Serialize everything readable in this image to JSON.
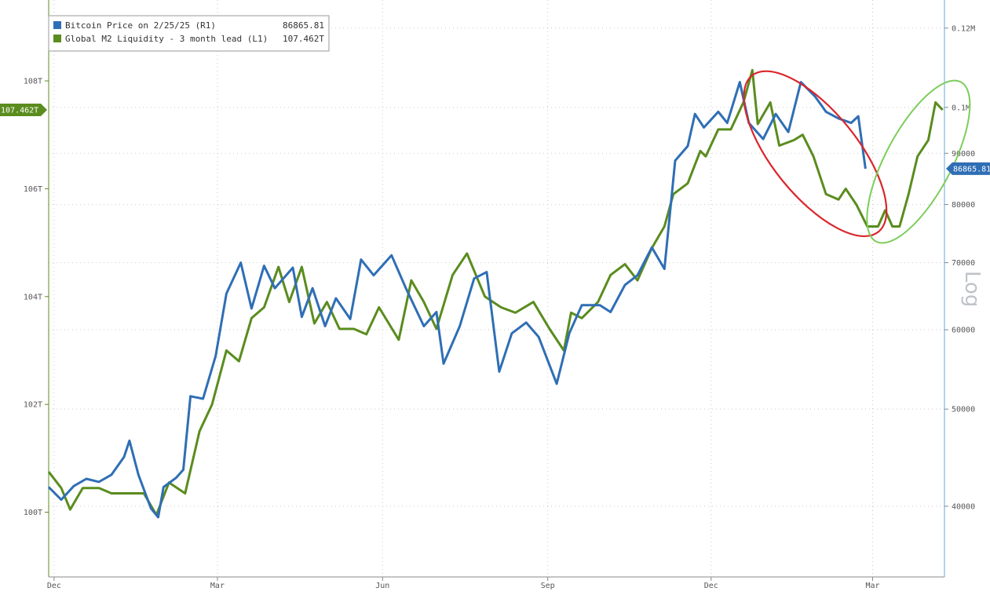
{
  "chart_data": {
    "type": "line",
    "legend_position": "top-left",
    "grid": true,
    "x_tick_labels": [
      "Dec",
      "Mar",
      "Jun",
      "Sep",
      "Dec",
      "Mar"
    ],
    "x_tick_dates": [
      "2023-12-01",
      "2024-03-01",
      "2024-06-01",
      "2024-09-01",
      "2024-12-01",
      "2025-03-01"
    ],
    "x_range": [
      "2023-11-28",
      "2025-04-10"
    ],
    "left_axis": {
      "scale": "linear",
      "range": [
        98.8,
        109.5
      ],
      "unit_suffix": "T",
      "tick_values": [
        100,
        102,
        104,
        106,
        108
      ],
      "tick_labels": [
        "100T",
        "102T",
        "104T",
        "106T",
        "108T"
      ]
    },
    "right_axis": {
      "scale": "log",
      "label": "Log",
      "range": [
        34000,
        128000
      ],
      "tick_values": [
        40000,
        50000,
        60000,
        70000,
        80000,
        90000,
        100000,
        120000
      ],
      "tick_labels": [
        "40000",
        "50000",
        "60000",
        "70000",
        "80000",
        "90000",
        "0.1M",
        "0.12M"
      ]
    },
    "series": [
      {
        "name": "Bitcoin Price on 2/25/25 (R1)",
        "axis": "right",
        "color": "#2f6eb5",
        "last_value_label": "86865.81",
        "tag_label": "86865.81",
        "points": [
          [
            "2023-11-28",
            41800
          ],
          [
            "2023-12-05",
            40600
          ],
          [
            "2023-12-12",
            41900
          ],
          [
            "2023-12-19",
            42600
          ],
          [
            "2023-12-26",
            42300
          ],
          [
            "2024-01-02",
            43000
          ],
          [
            "2024-01-09",
            44800
          ],
          [
            "2024-01-12",
            46500
          ],
          [
            "2024-01-17",
            43000
          ],
          [
            "2024-01-24",
            39800
          ],
          [
            "2024-01-28",
            39000
          ],
          [
            "2024-01-31",
            41800
          ],
          [
            "2024-02-07",
            42700
          ],
          [
            "2024-02-11",
            43500
          ],
          [
            "2024-02-15",
            51500
          ],
          [
            "2024-02-22",
            51200
          ],
          [
            "2024-02-29",
            56500
          ],
          [
            "2024-03-06",
            65200
          ],
          [
            "2024-03-14",
            70000
          ],
          [
            "2024-03-20",
            63000
          ],
          [
            "2024-03-27",
            69500
          ],
          [
            "2024-04-02",
            66000
          ],
          [
            "2024-04-12",
            69200
          ],
          [
            "2024-04-17",
            61800
          ],
          [
            "2024-04-23",
            66000
          ],
          [
            "2024-04-30",
            60500
          ],
          [
            "2024-05-06",
            64500
          ],
          [
            "2024-05-14",
            61500
          ],
          [
            "2024-05-20",
            70500
          ],
          [
            "2024-05-27",
            68000
          ],
          [
            "2024-06-06",
            71200
          ],
          [
            "2024-06-14",
            66000
          ],
          [
            "2024-06-24",
            60500
          ],
          [
            "2024-07-01",
            62500
          ],
          [
            "2024-07-05",
            55500
          ],
          [
            "2024-07-14",
            60500
          ],
          [
            "2024-07-22",
            67500
          ],
          [
            "2024-07-29",
            68500
          ],
          [
            "2024-08-05",
            54500
          ],
          [
            "2024-08-12",
            59500
          ],
          [
            "2024-08-20",
            61000
          ],
          [
            "2024-08-27",
            59000
          ],
          [
            "2024-09-06",
            53000
          ],
          [
            "2024-09-13",
            59500
          ],
          [
            "2024-09-20",
            63500
          ],
          [
            "2024-09-30",
            63500
          ],
          [
            "2024-10-06",
            62500
          ],
          [
            "2024-10-14",
            66500
          ],
          [
            "2024-10-21",
            68000
          ],
          [
            "2024-10-29",
            72500
          ],
          [
            "2024-11-05",
            69000
          ],
          [
            "2024-11-11",
            88500
          ],
          [
            "2024-11-18",
            91500
          ],
          [
            "2024-11-22",
            98500
          ],
          [
            "2024-11-27",
            95500
          ],
          [
            "2024-12-05",
            99000
          ],
          [
            "2024-12-10",
            96500
          ],
          [
            "2024-12-17",
            106000
          ],
          [
            "2024-12-22",
            96500
          ],
          [
            "2024-12-30",
            93000
          ],
          [
            "2025-01-06",
            98500
          ],
          [
            "2025-01-13",
            94500
          ],
          [
            "2025-01-20",
            106000
          ],
          [
            "2025-01-28",
            102500
          ],
          [
            "2025-02-03",
            99000
          ],
          [
            "2025-02-10",
            97500
          ],
          [
            "2025-02-17",
            96500
          ],
          [
            "2025-02-21",
            98000
          ],
          [
            "2025-02-25",
            86865.81
          ]
        ]
      },
      {
        "name": "Global M2 Liquidity - 3 month lead (L1)",
        "axis": "left",
        "color": "#5a8c1e",
        "last_value_label": "107.462T",
        "tag_label": "107.462T",
        "points": [
          [
            "2023-11-28",
            100.75
          ],
          [
            "2023-12-05",
            100.45
          ],
          [
            "2023-12-10",
            100.05
          ],
          [
            "2023-12-17",
            100.45
          ],
          [
            "2023-12-26",
            100.45
          ],
          [
            "2024-01-02",
            100.35
          ],
          [
            "2024-01-12",
            100.35
          ],
          [
            "2024-01-20",
            100.35
          ],
          [
            "2024-01-27",
            99.95
          ],
          [
            "2024-02-03",
            100.55
          ],
          [
            "2024-02-12",
            100.35
          ],
          [
            "2024-02-20",
            101.5
          ],
          [
            "2024-02-27",
            102.0
          ],
          [
            "2024-03-06",
            103.0
          ],
          [
            "2024-03-13",
            102.8
          ],
          [
            "2024-03-20",
            103.6
          ],
          [
            "2024-03-27",
            103.8
          ],
          [
            "2024-04-04",
            104.55
          ],
          [
            "2024-04-10",
            103.9
          ],
          [
            "2024-04-17",
            104.55
          ],
          [
            "2024-04-24",
            103.5
          ],
          [
            "2024-05-01",
            103.9
          ],
          [
            "2024-05-08",
            103.4
          ],
          [
            "2024-05-16",
            103.4
          ],
          [
            "2024-05-23",
            103.3
          ],
          [
            "2024-05-30",
            103.8
          ],
          [
            "2024-06-10",
            103.2
          ],
          [
            "2024-06-17",
            104.3
          ],
          [
            "2024-06-24",
            103.9
          ],
          [
            "2024-07-01",
            103.4
          ],
          [
            "2024-07-10",
            104.4
          ],
          [
            "2024-07-18",
            104.8
          ],
          [
            "2024-07-28",
            104.0
          ],
          [
            "2024-08-06",
            103.8
          ],
          [
            "2024-08-14",
            103.7
          ],
          [
            "2024-08-24",
            103.9
          ],
          [
            "2024-09-02",
            103.4
          ],
          [
            "2024-09-10",
            103.0
          ],
          [
            "2024-09-14",
            103.7
          ],
          [
            "2024-09-20",
            103.6
          ],
          [
            "2024-09-29",
            103.9
          ],
          [
            "2024-10-06",
            104.4
          ],
          [
            "2024-10-14",
            104.6
          ],
          [
            "2024-10-21",
            104.3
          ],
          [
            "2024-10-29",
            104.9
          ],
          [
            "2024-11-05",
            105.3
          ],
          [
            "2024-11-10",
            105.9
          ],
          [
            "2024-11-18",
            106.1
          ],
          [
            "2024-11-25",
            106.7
          ],
          [
            "2024-11-28",
            106.6
          ],
          [
            "2024-12-05",
            107.1
          ],
          [
            "2024-12-12",
            107.1
          ],
          [
            "2024-12-19",
            107.6
          ],
          [
            "2024-12-24",
            108.2
          ],
          [
            "2024-12-27",
            107.2
          ],
          [
            "2025-01-03",
            107.6
          ],
          [
            "2025-01-08",
            106.8
          ],
          [
            "2025-01-16",
            106.9
          ],
          [
            "2025-01-21",
            107.0
          ],
          [
            "2025-01-27",
            106.6
          ],
          [
            "2025-02-03",
            105.9
          ],
          [
            "2025-02-10",
            105.8
          ],
          [
            "2025-02-14",
            106.0
          ],
          [
            "2025-02-20",
            105.7
          ],
          [
            "2025-02-26",
            105.3
          ],
          [
            "2025-03-04",
            105.3
          ],
          [
            "2025-03-08",
            105.6
          ],
          [
            "2025-03-12",
            105.3
          ],
          [
            "2025-03-16",
            105.3
          ],
          [
            "2025-03-21",
            105.9
          ],
          [
            "2025-03-26",
            106.6
          ],
          [
            "2025-04-01",
            106.9
          ],
          [
            "2025-04-05",
            107.6
          ],
          [
            "2025-04-09",
            107.462
          ]
        ]
      }
    ],
    "annotations": [
      {
        "shape": "ellipse",
        "color": "#d9262c",
        "around": "Bitcoin price holding high while Global M2 falls (Jan–Feb 2025)"
      },
      {
        "shape": "ellipse",
        "color": "#7ccd5a",
        "around": "Global M2 rising (Mar–Apr 2025)"
      }
    ]
  }
}
